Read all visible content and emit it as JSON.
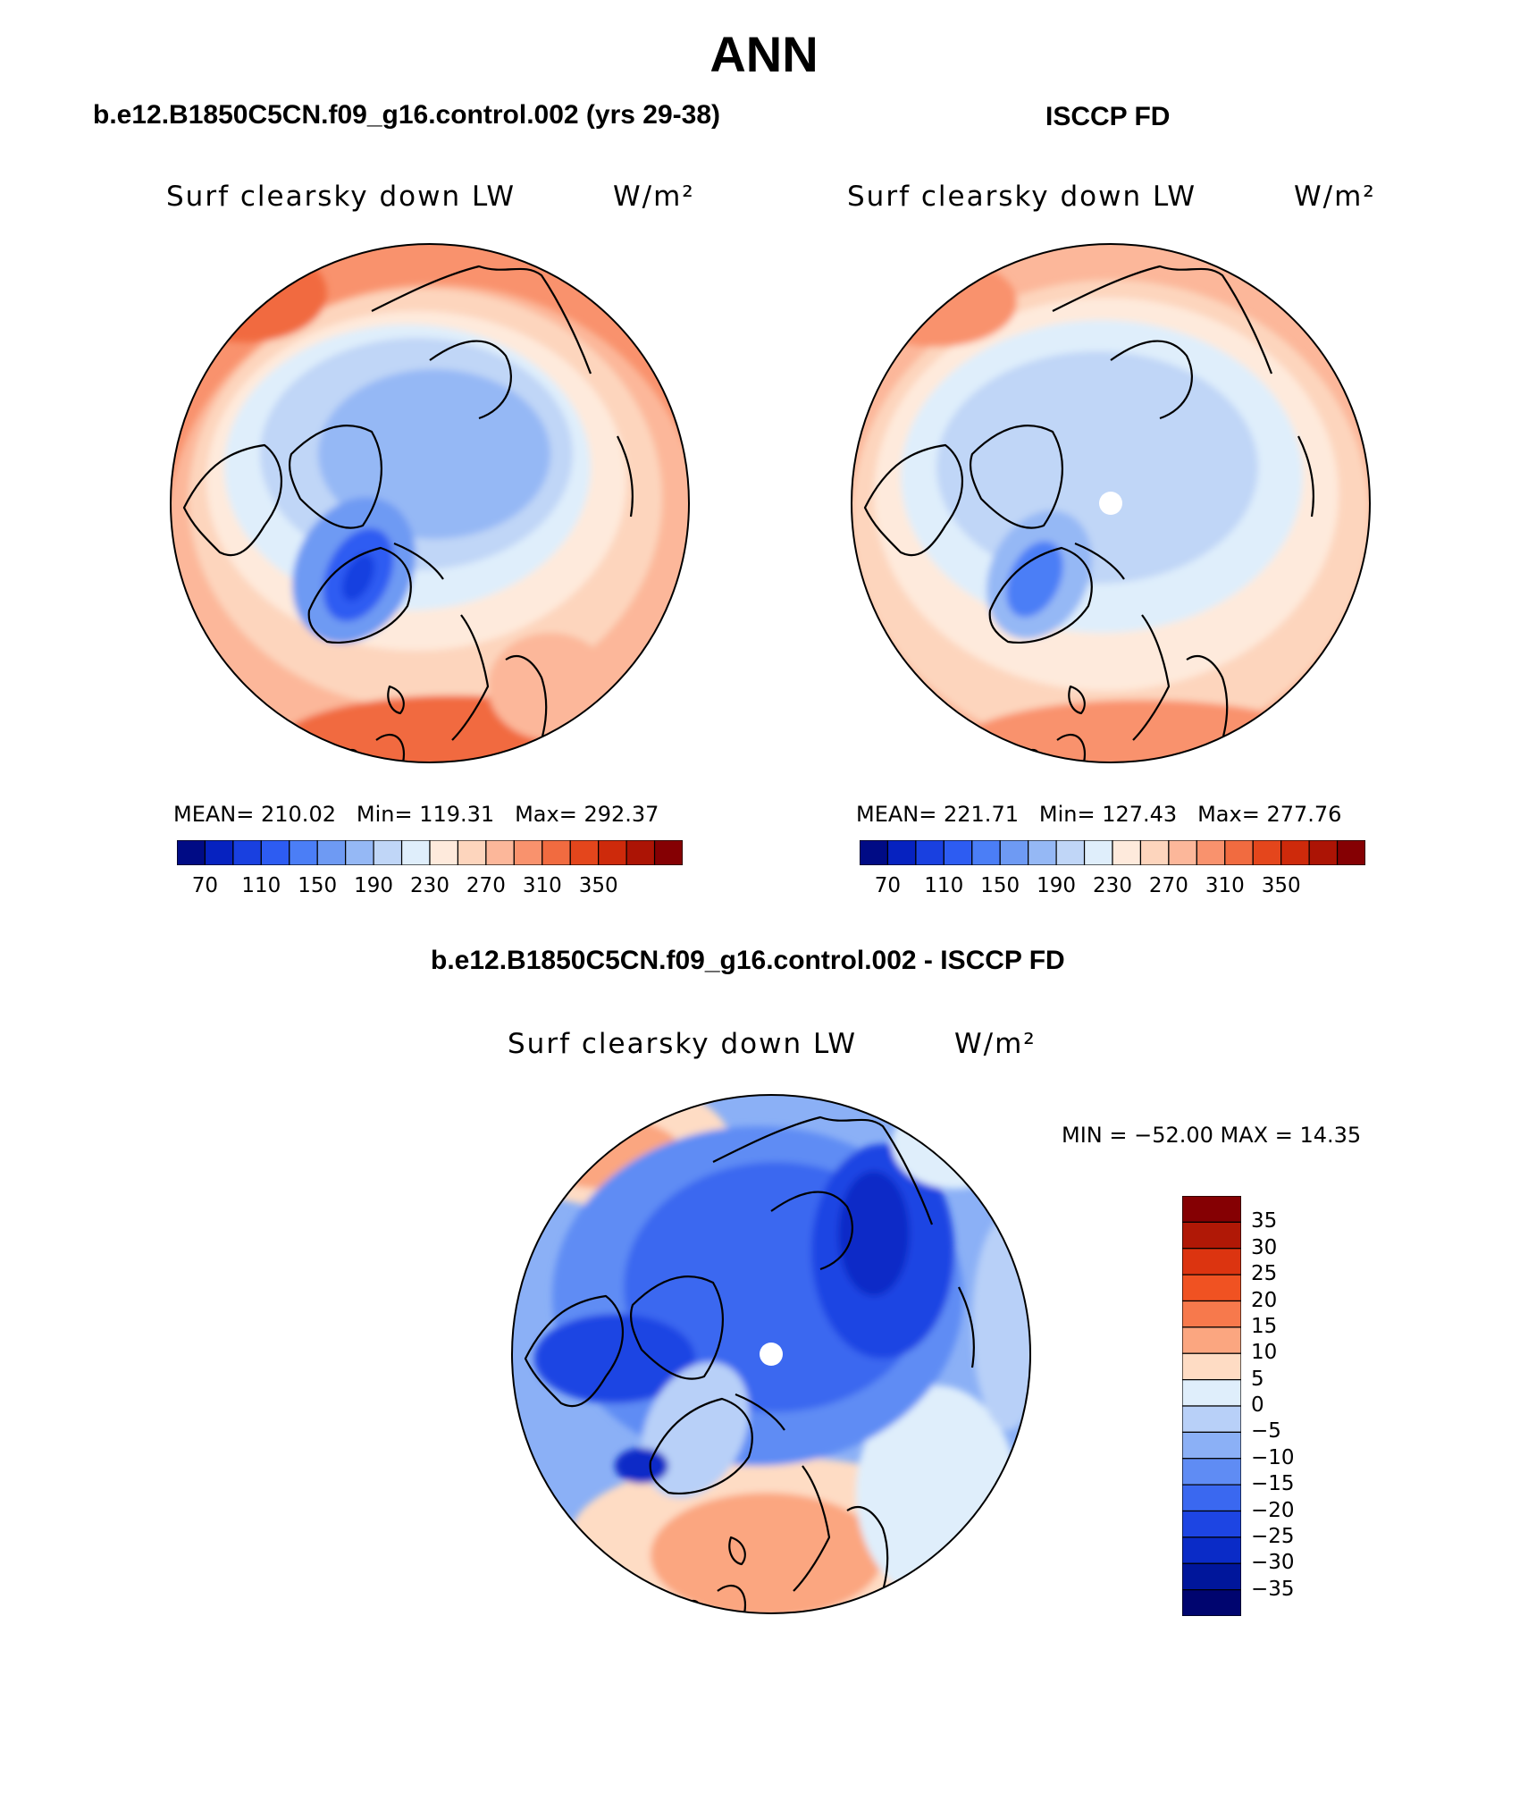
{
  "page": {
    "title": "ANN"
  },
  "panels": {
    "model": {
      "heading": "b.e12.B1850C5CN.f09_g16.control.002 (yrs 29-38)",
      "variable": "Surf clearsky down LW",
      "units": "W/m²",
      "stats": {
        "mean_label": "MEAN=",
        "mean": "210.02",
        "min_label": "Min=",
        "min": "119.31",
        "max_label": "Max=",
        "max": "292.37"
      },
      "colorbar": {
        "colors": [
          "#000b85",
          "#0622c0",
          "#1940e0",
          "#2d5cf2",
          "#4b7ef6",
          "#6e9af3",
          "#95b8f5",
          "#c0d6f7",
          "#dfeefb",
          "#feeadc",
          "#fdd5bd",
          "#fcb79a",
          "#f9926d",
          "#f16b40",
          "#e4461c",
          "#ce2a0b",
          "#ac1405",
          "#850003"
        ],
        "labels": [
          "70",
          "110",
          "150",
          "190",
          "230",
          "270",
          "310",
          "350"
        ]
      }
    },
    "obs": {
      "heading": "ISCCP FD",
      "variable": "Surf clearsky down LW",
      "units": "W/m²",
      "stats": {
        "mean_label": "MEAN=",
        "mean": "221.71",
        "min_label": "Min=",
        "min": "127.43",
        "max_label": "Max=",
        "max": "277.76"
      },
      "colorbar": {
        "colors": [
          "#000b85",
          "#0622c0",
          "#1940e0",
          "#2d5cf2",
          "#4b7ef6",
          "#6e9af3",
          "#95b8f5",
          "#c0d6f7",
          "#dfeefb",
          "#feeadc",
          "#fdd5bd",
          "#fcb79a",
          "#f9926d",
          "#f16b40",
          "#e4461c",
          "#ce2a0b",
          "#ac1405",
          "#850003"
        ],
        "labels": [
          "70",
          "110",
          "150",
          "190",
          "230",
          "270",
          "310",
          "350"
        ]
      }
    },
    "diff": {
      "heading": "b.e12.B1850C5CN.f09_g16.control.002 - ISCCP FD",
      "variable": "Surf clearsky down LW",
      "units": "W/m²",
      "stats_text": "MIN = −52.00 MAX =  14.35",
      "colorbar": {
        "colors_top_to_bottom": [
          "#850003",
          "#b01806",
          "#dc3410",
          "#f05222",
          "#f7794c",
          "#fba680",
          "#fedcc4",
          "#dfeefb",
          "#b8d0f8",
          "#8bb0f6",
          "#5f8cf4",
          "#3a68f0",
          "#1d45e3",
          "#0a2bc7",
          "#00169b",
          "#00056f"
        ],
        "labels": [
          "35",
          "30",
          "25",
          "20",
          "15",
          "10",
          "5",
          "0",
          "−5",
          "−10",
          "−15",
          "−20",
          "−25",
          "−30",
          "−35"
        ]
      }
    }
  }
}
